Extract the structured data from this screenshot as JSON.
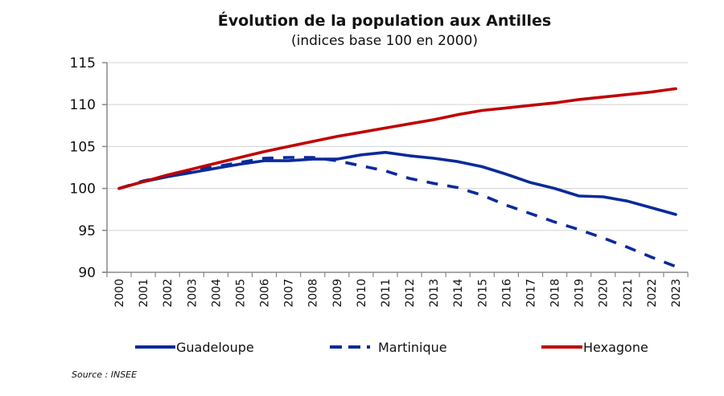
{
  "chart_data": {
    "type": "line",
    "title": "Évolution de la population aux Antilles",
    "subtitle": "(indices base 100 en 2000)",
    "xlabel": "",
    "ylabel": "",
    "ylim": [
      90,
      115
    ],
    "yticks": [
      "90",
      "95",
      "100",
      "105",
      "110",
      "115"
    ],
    "ytick_values": [
      90,
      95,
      100,
      105,
      110,
      115
    ],
    "grid": true,
    "legend_position": "bottom",
    "x": [
      "2000",
      "2001",
      "2002",
      "2003",
      "2004",
      "2005",
      "2006",
      "2007",
      "2008",
      "2009",
      "2010",
      "2011",
      "2012",
      "2013",
      "2014",
      "2015",
      "2016",
      "2017",
      "2018",
      "2019",
      "2020",
      "2021",
      "2022",
      "2023"
    ],
    "series": [
      {
        "name": "Guadeloupe",
        "style": "solid",
        "color": "#0a2a9a",
        "values": [
          100,
          100.8,
          101.4,
          101.9,
          102.4,
          102.9,
          103.3,
          103.3,
          103.5,
          103.5,
          104.0,
          104.3,
          103.9,
          103.6,
          103.2,
          102.6,
          101.7,
          100.7,
          100.0,
          99.1,
          99.0,
          98.5,
          97.7,
          96.9
        ]
      },
      {
        "name": "Martinique",
        "style": "dashed",
        "color": "#0a2a9a",
        "values": [
          100,
          100.9,
          101.5,
          102.1,
          102.6,
          103.1,
          103.6,
          103.7,
          103.7,
          103.3,
          102.7,
          102.1,
          101.2,
          100.6,
          100.1,
          99.2,
          98.0,
          97.0,
          96.0,
          95.1,
          94.1,
          93.0,
          91.8,
          90.7
        ]
      },
      {
        "name": "Hexagone",
        "style": "solid",
        "color": "#c00000",
        "values": [
          100,
          100.8,
          101.6,
          102.3,
          103.0,
          103.7,
          104.4,
          105.0,
          105.6,
          106.2,
          106.7,
          107.2,
          107.7,
          108.2,
          108.8,
          109.3,
          109.6,
          109.9,
          110.2,
          110.6,
          110.9,
          111.2,
          111.5,
          111.9
        ]
      }
    ],
    "source": "Source : INSEE"
  }
}
